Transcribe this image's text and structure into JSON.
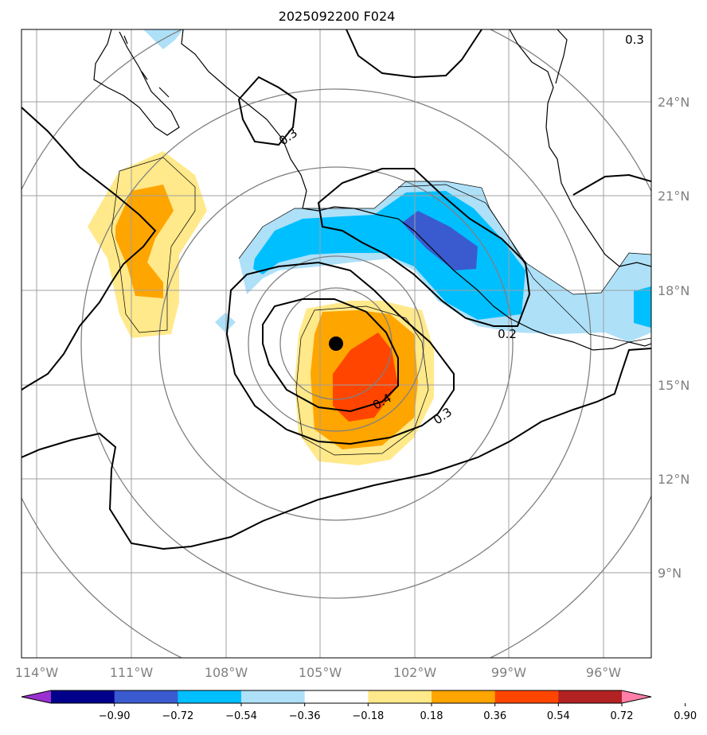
{
  "title": "2025092200 F024",
  "map": {
    "lon_ticks": [
      "114°W",
      "111°W",
      "108°W",
      "105°W",
      "102°W",
      "99°W",
      "96°W"
    ],
    "lat_ticks": [
      "24°N",
      "21°N",
      "18°N",
      "15°N",
      "12°N",
      "9°N"
    ],
    "grid_color": "#a0a0a0",
    "coast_color": "#000000",
    "center_marker": "storm-center-dot",
    "contour_labels": [
      "0.3",
      "0.3",
      "0.2",
      "0.4",
      "0.3"
    ]
  },
  "colorbar": {
    "ticks": [
      "−0.90",
      "−0.72",
      "−0.54",
      "−0.36",
      "−0.18",
      "0.18",
      "0.36",
      "0.54",
      "0.72",
      "0.90"
    ],
    "colors": [
      "#9b30d0",
      "#00008b",
      "#3a5bd0",
      "#00bfff",
      "#aee0f8",
      "#ffffff",
      "#ffe98a",
      "#ffa500",
      "#ff4500",
      "#b22222",
      "#ff7fa8"
    ]
  },
  "colors": {
    "neg_light": "#aee0f8",
    "neg_mid": "#00bfff",
    "neg_dark": "#3a5bd0",
    "pos_light": "#ffe98a",
    "pos_mid": "#ffa500",
    "pos_dark": "#ff4500"
  }
}
